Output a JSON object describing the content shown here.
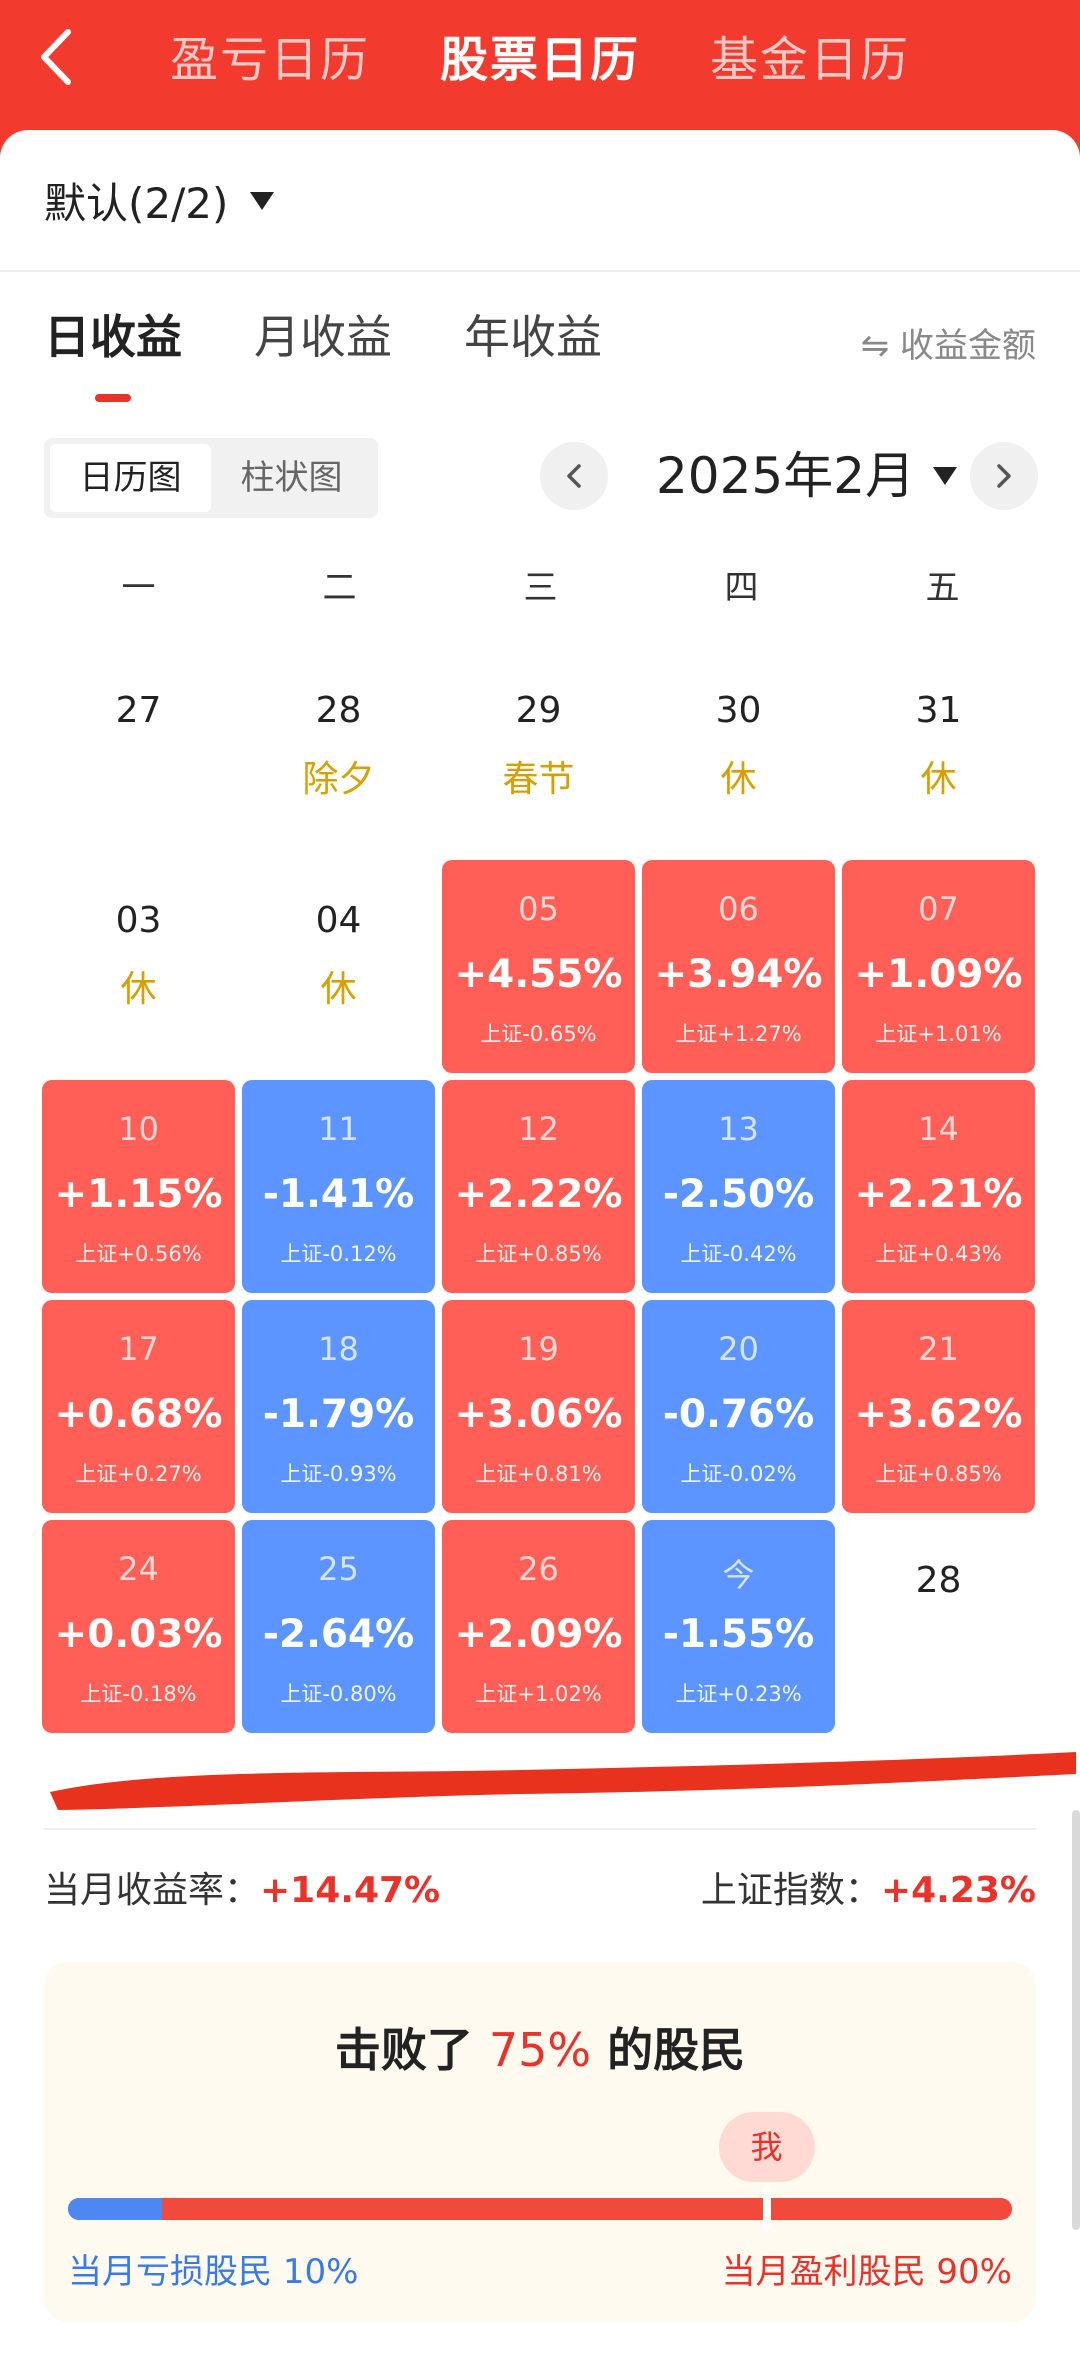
{
  "header": {
    "tabs": [
      {
        "label": "盈亏日历",
        "active": false
      },
      {
        "label": "股票日历",
        "active": true
      },
      {
        "label": "基金日历",
        "active": false
      }
    ]
  },
  "account": {
    "label": "默认(2/2)"
  },
  "profit_tabs": [
    {
      "label": "日收益",
      "active": true
    },
    {
      "label": "月收益",
      "active": false
    },
    {
      "label": "年收益",
      "active": false
    }
  ],
  "amount_toggle": "⇋ 收益金额",
  "view_toggle": [
    {
      "label": "日历图",
      "active": true
    },
    {
      "label": "柱状图",
      "active": false
    }
  ],
  "month_label": "2025年2月",
  "weekdays": [
    "一",
    "二",
    "三",
    "四",
    "五"
  ],
  "calendar": {
    "rows": [
      [
        {
          "day": "27",
          "type": "plain",
          "tag": ""
        },
        {
          "day": "28",
          "type": "plain",
          "tag": "除夕"
        },
        {
          "day": "29",
          "type": "plain",
          "tag": "春节"
        },
        {
          "day": "30",
          "type": "plain",
          "tag": "休"
        },
        {
          "day": "31",
          "type": "plain",
          "tag": "休"
        }
      ],
      [
        {
          "day": "03",
          "type": "plain",
          "tag": "休"
        },
        {
          "day": "04",
          "type": "plain",
          "tag": "休"
        },
        {
          "day": "05",
          "type": "up",
          "pct": "+4.55%",
          "index": "上证-0.65%"
        },
        {
          "day": "06",
          "type": "up",
          "pct": "+3.94%",
          "index": "上证+1.27%"
        },
        {
          "day": "07",
          "type": "up",
          "pct": "+1.09%",
          "index": "上证+1.01%"
        }
      ],
      [
        {
          "day": "10",
          "type": "up",
          "pct": "+1.15%",
          "index": "上证+0.56%"
        },
        {
          "day": "11",
          "type": "down",
          "pct": "-1.41%",
          "index": "上证-0.12%"
        },
        {
          "day": "12",
          "type": "up",
          "pct": "+2.22%",
          "index": "上证+0.85%"
        },
        {
          "day": "13",
          "type": "down",
          "pct": "-2.50%",
          "index": "上证-0.42%"
        },
        {
          "day": "14",
          "type": "up",
          "pct": "+2.21%",
          "index": "上证+0.43%"
        }
      ],
      [
        {
          "day": "17",
          "type": "up",
          "pct": "+0.68%",
          "index": "上证+0.27%"
        },
        {
          "day": "18",
          "type": "down",
          "pct": "-1.79%",
          "index": "上证-0.93%"
        },
        {
          "day": "19",
          "type": "up",
          "pct": "+3.06%",
          "index": "上证+0.81%"
        },
        {
          "day": "20",
          "type": "down",
          "pct": "-0.76%",
          "index": "上证-0.02%"
        },
        {
          "day": "21",
          "type": "up",
          "pct": "+3.62%",
          "index": "上证+0.85%"
        }
      ],
      [
        {
          "day": "24",
          "type": "up",
          "pct": "+0.03%",
          "index": "上证-0.18%"
        },
        {
          "day": "25",
          "type": "down",
          "pct": "-2.64%",
          "index": "上证-0.80%"
        },
        {
          "day": "26",
          "type": "up",
          "pct": "+2.09%",
          "index": "上证+1.02%"
        },
        {
          "day": "今",
          "type": "down",
          "pct": "-1.55%",
          "index": "上证+0.23%"
        },
        {
          "day": "28",
          "type": "plain",
          "tag": ""
        }
      ]
    ]
  },
  "summary": {
    "month_return_label": "当月收益率：",
    "month_return_value": "+14.47%",
    "index_label": "上证指数：",
    "index_value": "+4.23%"
  },
  "beat": {
    "prefix": "击败了",
    "value": "75%",
    "suffix": "的股民",
    "me_label": "我",
    "loss_label": "当月亏损股民",
    "loss_pct": "10%",
    "profit_label": "当月盈利股民",
    "profit_pct": "90%",
    "loss_fraction": 0.1,
    "me_fraction": 0.74
  },
  "colors": {
    "header_red": "#f23b2e",
    "up": "#ff5f56",
    "down": "#5c95ff",
    "holiday": "#d6a000",
    "accent_red": "#e8322a",
    "loss_blue": "#4e86f2"
  }
}
